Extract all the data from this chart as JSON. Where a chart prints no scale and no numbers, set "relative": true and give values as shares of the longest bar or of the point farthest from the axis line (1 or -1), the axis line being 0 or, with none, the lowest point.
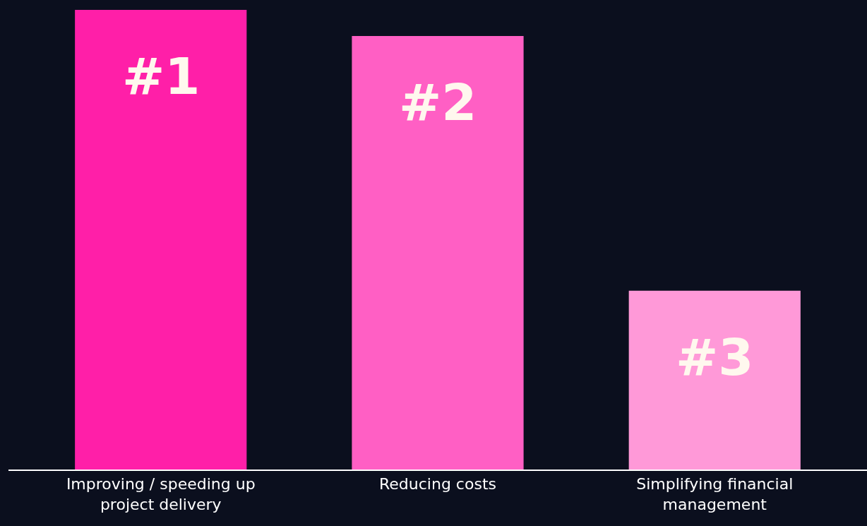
{
  "chart_data": {
    "type": "bar",
    "relative": true,
    "categories": [
      "Improving / speeding up project delivery",
      "Reducing costs",
      "Simplifying financial management"
    ],
    "values": [
      1,
      0.943,
      0.389
    ],
    "colors": [
      "#ff1fa8",
      "#ff5fc4",
      "#ff99d8"
    ],
    "annotations": [
      "#1",
      "#2",
      "#3"
    ],
    "grid": false,
    "legend": false
  }
}
